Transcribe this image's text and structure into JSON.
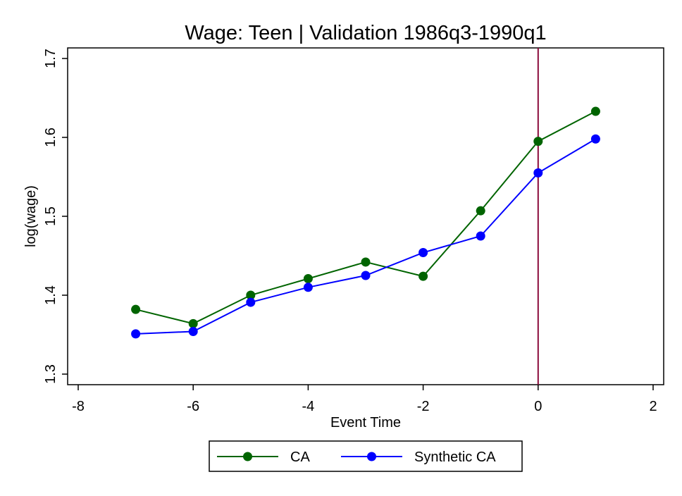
{
  "chart_data": {
    "type": "line",
    "title": "Wage: Teen | Validation 1986q3-1990q1",
    "xlabel": "Event Time",
    "ylabel": "log(wage)",
    "xlim": [
      -8,
      2
    ],
    "ylim": [
      1.3,
      1.7
    ],
    "x_ticks": [
      "-8",
      "-6",
      "-4",
      "-2",
      "0",
      "2"
    ],
    "y_ticks": [
      "1.3",
      "1.4",
      "1.5",
      "1.6",
      "1.7"
    ],
    "x": [
      -7,
      -6,
      -5,
      -4,
      -3,
      -2,
      -1,
      0,
      1
    ],
    "series": [
      {
        "name": "CA",
        "color": "#006400",
        "values": [
          1.382,
          1.364,
          1.4,
          1.421,
          1.442,
          1.424,
          1.507,
          1.595,
          1.633
        ]
      },
      {
        "name": "Synthetic CA",
        "color": "#0000ff",
        "values": [
          1.351,
          1.354,
          1.391,
          1.41,
          1.425,
          1.454,
          1.475,
          1.555,
          1.598
        ]
      }
    ],
    "reference_line": {
      "axis": "x",
      "value": 0,
      "color": "#8b0a3a"
    },
    "grid": false,
    "legend_position": "bottom"
  }
}
